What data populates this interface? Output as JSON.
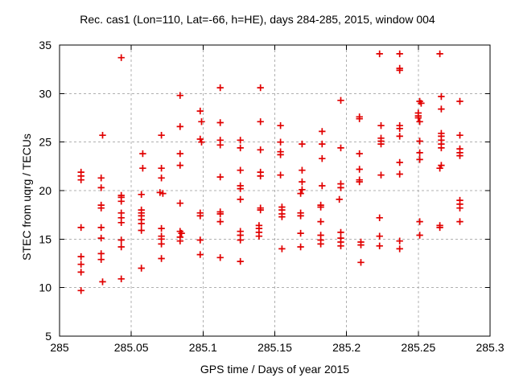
{
  "chart_data": {
    "type": "scatter",
    "title": "Rec. cas1 (Lon=110, Lat=-66, h=HE), days 284-285, 2015, window 004",
    "xlabel": "GPS time / Days of year 2015",
    "ylabel": "STEC from uqrg / TECUs",
    "xlim": [
      285,
      285.3
    ],
    "ylim": [
      5,
      35
    ],
    "xticks": [
      285,
      285.05,
      285.1,
      285.15,
      285.2,
      285.25,
      285.3
    ],
    "xtick_labels": [
      "285",
      "285.05",
      "285.1",
      "285.15",
      "285.2",
      "285.25",
      "285.3"
    ],
    "yticks": [
      5,
      10,
      15,
      20,
      25,
      30,
      35
    ],
    "ytick_labels": [
      "5",
      "10",
      "15",
      "20",
      "25",
      "30",
      "35"
    ],
    "grid": true,
    "legend": "none",
    "marker": "plus",
    "marker_color": "#e10000",
    "grid_color": "#b0b0b0",
    "axis_color": "#000000",
    "series": [
      {
        "name": "STEC",
        "points": [
          [
            285.015,
            21.9
          ],
          [
            285.015,
            21.5
          ],
          [
            285.015,
            21.1
          ],
          [
            285.015,
            16.2
          ],
          [
            285.015,
            13.2
          ],
          [
            285.015,
            12.4
          ],
          [
            285.015,
            11.6
          ],
          [
            285.015,
            9.7
          ],
          [
            285.03,
            25.7
          ],
          [
            285.029,
            21.3
          ],
          [
            285.029,
            20.3
          ],
          [
            285.029,
            18.5
          ],
          [
            285.029,
            18.2
          ],
          [
            285.029,
            16.2
          ],
          [
            285.029,
            15.1
          ],
          [
            285.029,
            13.5
          ],
          [
            285.029,
            12.9
          ],
          [
            285.03,
            10.6
          ],
          [
            285.043,
            33.7
          ],
          [
            285.043,
            19.5
          ],
          [
            285.043,
            19.3
          ],
          [
            285.043,
            18.9
          ],
          [
            285.043,
            17.7
          ],
          [
            285.043,
            17.2
          ],
          [
            285.043,
            16.7
          ],
          [
            285.043,
            14.9
          ],
          [
            285.043,
            14.2
          ],
          [
            285.043,
            10.9
          ],
          [
            285.058,
            23.8
          ],
          [
            285.058,
            22.3
          ],
          [
            285.057,
            19.6
          ],
          [
            285.057,
            18.0
          ],
          [
            285.057,
            17.7
          ],
          [
            285.057,
            17.4
          ],
          [
            285.057,
            17.0
          ],
          [
            285.057,
            16.6
          ],
          [
            285.057,
            15.9
          ],
          [
            285.057,
            12.0
          ],
          [
            285.071,
            25.7
          ],
          [
            285.071,
            22.3
          ],
          [
            285.071,
            21.3
          ],
          [
            285.07,
            19.8
          ],
          [
            285.072,
            19.7
          ],
          [
            285.071,
            16.1
          ],
          [
            285.071,
            15.3
          ],
          [
            285.071,
            15.0
          ],
          [
            285.071,
            14.5
          ],
          [
            285.071,
            13.0
          ],
          [
            285.084,
            29.8
          ],
          [
            285.084,
            26.6
          ],
          [
            285.084,
            23.8
          ],
          [
            285.084,
            22.6
          ],
          [
            285.084,
            18.7
          ],
          [
            285.084,
            15.8
          ],
          [
            285.085,
            15.6
          ],
          [
            285.084,
            15.2
          ],
          [
            285.084,
            14.8
          ],
          [
            285.098,
            28.2
          ],
          [
            285.099,
            27.1
          ],
          [
            285.098,
            25.3
          ],
          [
            285.099,
            25.0
          ],
          [
            285.098,
            17.7
          ],
          [
            285.098,
            17.4
          ],
          [
            285.098,
            14.9
          ],
          [
            285.098,
            13.4
          ],
          [
            285.112,
            30.6
          ],
          [
            285.112,
            27.0
          ],
          [
            285.112,
            25.2
          ],
          [
            285.112,
            24.7
          ],
          [
            285.112,
            21.4
          ],
          [
            285.112,
            17.8
          ],
          [
            285.112,
            17.6
          ],
          [
            285.112,
            16.8
          ],
          [
            285.112,
            13.1
          ],
          [
            285.126,
            25.2
          ],
          [
            285.126,
            24.4
          ],
          [
            285.126,
            22.1
          ],
          [
            285.126,
            20.5
          ],
          [
            285.126,
            20.2
          ],
          [
            285.126,
            19.1
          ],
          [
            285.126,
            15.8
          ],
          [
            285.126,
            15.4
          ],
          [
            285.126,
            14.9
          ],
          [
            285.126,
            12.7
          ],
          [
            285.14,
            30.6
          ],
          [
            285.14,
            27.1
          ],
          [
            285.14,
            24.2
          ],
          [
            285.14,
            21.9
          ],
          [
            285.14,
            21.5
          ],
          [
            285.14,
            18.2
          ],
          [
            285.14,
            18.0
          ],
          [
            285.139,
            16.4
          ],
          [
            285.139,
            16.1
          ],
          [
            285.139,
            15.7
          ],
          [
            285.139,
            15.3
          ],
          [
            285.154,
            26.7
          ],
          [
            285.154,
            25.0
          ],
          [
            285.154,
            24.0
          ],
          [
            285.154,
            23.7
          ],
          [
            285.154,
            21.6
          ],
          [
            285.155,
            18.3
          ],
          [
            285.155,
            18.0
          ],
          [
            285.155,
            17.6
          ],
          [
            285.155,
            17.3
          ],
          [
            285.155,
            14.0
          ],
          [
            285.169,
            24.8
          ],
          [
            285.169,
            22.1
          ],
          [
            285.169,
            20.9
          ],
          [
            285.169,
            20.1
          ],
          [
            285.168,
            19.7
          ],
          [
            285.168,
            17.7
          ],
          [
            285.168,
            17.4
          ],
          [
            285.168,
            15.6
          ],
          [
            285.168,
            14.2
          ],
          [
            285.183,
            26.1
          ],
          [
            285.183,
            24.8
          ],
          [
            285.183,
            23.3
          ],
          [
            285.183,
            20.5
          ],
          [
            285.182,
            18.5
          ],
          [
            285.182,
            18.3
          ],
          [
            285.182,
            16.8
          ],
          [
            285.182,
            15.4
          ],
          [
            285.182,
            14.9
          ],
          [
            285.182,
            14.5
          ],
          [
            285.196,
            29.3
          ],
          [
            285.196,
            24.4
          ],
          [
            285.196,
            20.7
          ],
          [
            285.196,
            20.3
          ],
          [
            285.195,
            19.1
          ],
          [
            285.196,
            15.7
          ],
          [
            285.196,
            15.1
          ],
          [
            285.196,
            14.7
          ],
          [
            285.196,
            14.3
          ],
          [
            285.209,
            27.6
          ],
          [
            285.209,
            27.4
          ],
          [
            285.209,
            23.8
          ],
          [
            285.209,
            22.2
          ],
          [
            285.209,
            21.1
          ],
          [
            285.209,
            20.9
          ],
          [
            285.21,
            14.7
          ],
          [
            285.21,
            14.4
          ],
          [
            285.21,
            12.6
          ],
          [
            285.223,
            34.1
          ],
          [
            285.224,
            26.7
          ],
          [
            285.224,
            25.4
          ],
          [
            285.224,
            25.1
          ],
          [
            285.224,
            24.8
          ],
          [
            285.224,
            21.6
          ],
          [
            285.223,
            17.2
          ],
          [
            285.223,
            15.3
          ],
          [
            285.223,
            14.3
          ],
          [
            285.237,
            34.1
          ],
          [
            285.237,
            32.6
          ],
          [
            285.237,
            32.4
          ],
          [
            285.237,
            26.7
          ],
          [
            285.237,
            26.4
          ],
          [
            285.237,
            25.6
          ],
          [
            285.237,
            22.9
          ],
          [
            285.237,
            21.7
          ],
          [
            285.237,
            14.8
          ],
          [
            285.237,
            14.0
          ],
          [
            285.251,
            29.2
          ],
          [
            285.252,
            29.0
          ],
          [
            285.25,
            28.0
          ],
          [
            285.25,
            27.7
          ],
          [
            285.25,
            27.5
          ],
          [
            285.251,
            27.1
          ],
          [
            285.251,
            25.1
          ],
          [
            285.251,
            23.9
          ],
          [
            285.251,
            23.2
          ],
          [
            285.251,
            16.8
          ],
          [
            285.251,
            15.4
          ],
          [
            285.265,
            34.1
          ],
          [
            285.266,
            29.7
          ],
          [
            285.266,
            28.4
          ],
          [
            285.266,
            25.9
          ],
          [
            285.266,
            25.6
          ],
          [
            285.266,
            25.2
          ],
          [
            285.266,
            24.8
          ],
          [
            285.266,
            24.4
          ],
          [
            285.266,
            22.6
          ],
          [
            285.265,
            22.3
          ],
          [
            285.265,
            16.4
          ],
          [
            285.265,
            16.2
          ],
          [
            285.279,
            29.2
          ],
          [
            285.279,
            25.7
          ],
          [
            285.279,
            24.3
          ],
          [
            285.279,
            23.9
          ],
          [
            285.279,
            23.6
          ],
          [
            285.279,
            19.0
          ],
          [
            285.279,
            18.6
          ],
          [
            285.279,
            18.2
          ],
          [
            285.279,
            16.8
          ]
        ]
      }
    ]
  }
}
